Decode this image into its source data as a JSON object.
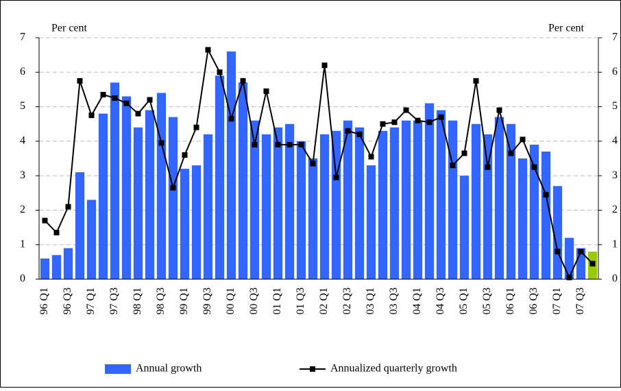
{
  "chart_data": {
    "type": "bar",
    "y_label": "Per cent",
    "y2_label": "Per cent",
    "categories": [
      "96 Q1",
      null,
      "96 Q3",
      null,
      "97 Q1",
      null,
      "97 Q3",
      null,
      "98 Q1",
      null,
      "98 Q3",
      null,
      "99 Q1",
      null,
      "99 Q3",
      null,
      "00 Q1",
      null,
      "00 Q3",
      null,
      "01 Q1",
      null,
      "01 Q3",
      null,
      "02 Q1",
      null,
      "02 Q3",
      null,
      "03 Q1",
      null,
      "03 Q3",
      null,
      "04 Q1",
      null,
      "04 Q3",
      null,
      "05 Q1",
      null,
      "05 Q3",
      null,
      "06 Q1",
      null,
      "06 Q3",
      null,
      "07 Q1",
      null,
      "07 Q3",
      null
    ],
    "series": [
      {
        "name": "Annual growth",
        "type": "bar",
        "color": "#3366ff",
        "colors": [
          "#3366ff",
          "#3366ff",
          "#3366ff",
          "#3366ff",
          "#3366ff",
          "#3366ff",
          "#3366ff",
          "#3366ff",
          "#3366ff",
          "#3366ff",
          "#3366ff",
          "#3366ff",
          "#3366ff",
          "#3366ff",
          "#3366ff",
          "#3366ff",
          "#3366ff",
          "#3366ff",
          "#3366ff",
          "#3366ff",
          "#3366ff",
          "#3366ff",
          "#3366ff",
          "#3366ff",
          "#3366ff",
          "#3366ff",
          "#3366ff",
          "#3366ff",
          "#3366ff",
          "#3366ff",
          "#3366ff",
          "#3366ff",
          "#3366ff",
          "#3366ff",
          "#3366ff",
          "#3366ff",
          "#3366ff",
          "#3366ff",
          "#3366ff",
          "#3366ff",
          "#3366ff",
          "#3366ff",
          "#3366ff",
          "#3366ff",
          "#3366ff",
          "#3366ff",
          "#3366ff",
          "#99cc00"
        ],
        "values": [
          0.6,
          0.7,
          0.9,
          3.1,
          2.3,
          4.8,
          5.7,
          5.3,
          4.4,
          4.9,
          5.4,
          4.7,
          3.2,
          3.3,
          4.2,
          5.9,
          6.6,
          5.7,
          4.6,
          4.2,
          4.4,
          4.5,
          4.0,
          3.5,
          4.2,
          4.3,
          4.6,
          4.4,
          3.3,
          4.3,
          4.4,
          4.6,
          4.6,
          5.1,
          4.9,
          4.6,
          3.0,
          4.5,
          4.2,
          4.7,
          4.5,
          3.5,
          3.9,
          3.7,
          2.7,
          1.2,
          0.9,
          0.8
        ]
      },
      {
        "name": "Annualized quarterly growth",
        "type": "line",
        "color": "#000000",
        "values": [
          1.7,
          1.35,
          2.1,
          5.75,
          4.75,
          5.35,
          5.25,
          5.1,
          4.8,
          5.2,
          3.95,
          2.65,
          3.6,
          4.4,
          6.65,
          6.0,
          4.65,
          5.75,
          3.9,
          5.45,
          3.9,
          3.9,
          3.9,
          3.35,
          6.2,
          2.95,
          4.3,
          4.2,
          3.55,
          4.5,
          4.55,
          4.9,
          4.6,
          4.55,
          4.7,
          3.3,
          3.65,
          5.75,
          3.25,
          4.9,
          3.65,
          4.05,
          3.25,
          2.45,
          0.8,
          0.05,
          0.8,
          0.45
        ]
      }
    ],
    "ylim": [
      0,
      7
    ],
    "yticks": [
      0,
      1,
      2,
      3,
      4,
      5,
      6,
      7
    ],
    "y2lim": [
      0,
      7
    ],
    "y2ticks": [
      0,
      1,
      2,
      3,
      4,
      5,
      6,
      7
    ],
    "grid": true,
    "legend": "bottom"
  }
}
